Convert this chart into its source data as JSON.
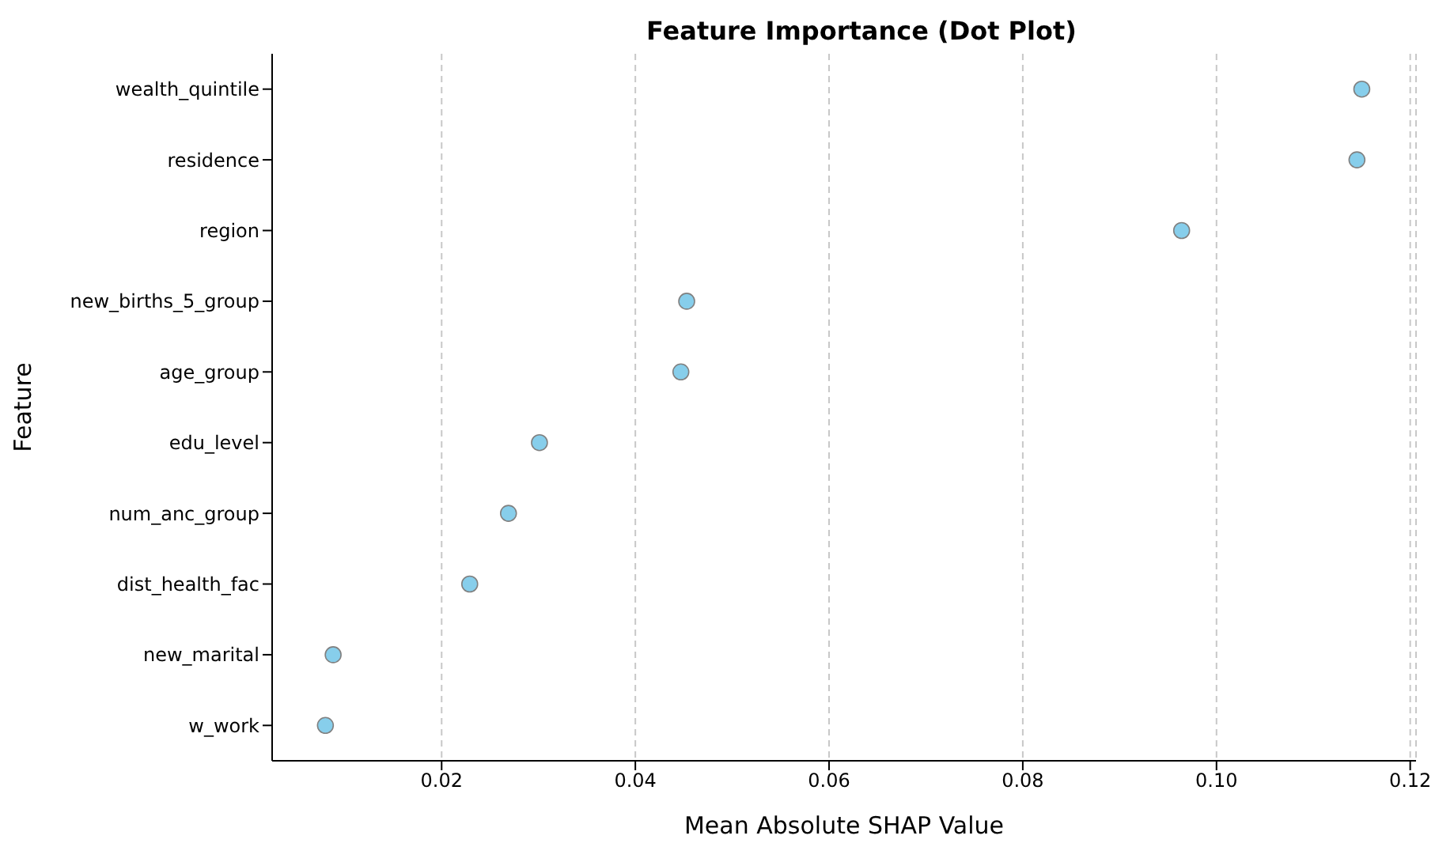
{
  "chart_data": {
    "type": "scatter",
    "title": "Feature Importance (Dot Plot)",
    "xlabel": "Mean Absolute SHAP Value",
    "ylabel": "Feature",
    "categories": [
      "wealth_quintile",
      "residence",
      "region",
      "new_births_5_group",
      "age_group",
      "edu_level",
      "num_anc_group",
      "dist_health_fac",
      "new_marital",
      "w_work"
    ],
    "orientation": "horizontal",
    "values": [
      0.115,
      0.1145,
      0.0964,
      0.0453,
      0.0447,
      0.0301,
      0.0269,
      0.0229,
      0.0088,
      0.008
    ],
    "color": "#87ceeb",
    "marker": "circle",
    "grid": "x",
    "line_style": "dashed",
    "xlim": [
      0.0025,
      0.1206
    ],
    "xticks": [
      {
        "value": 0.02,
        "label": "0.02"
      },
      {
        "value": 0.04,
        "label": "0.04"
      },
      {
        "value": 0.06,
        "label": "0.06"
      },
      {
        "value": 0.08,
        "label": "0.08"
      },
      {
        "value": 0.1,
        "label": "0.10"
      },
      {
        "value": 0.12,
        "label": "0.12"
      }
    ]
  }
}
